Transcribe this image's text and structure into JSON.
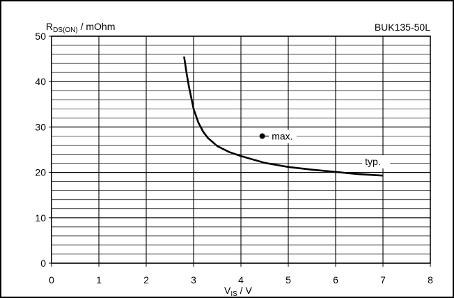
{
  "chart_data": {
    "type": "line",
    "title": "BUK135-50L",
    "ylabel_main": "R",
    "ylabel_sub": "DS(ON)",
    "ylabel_unit": " / mOhm",
    "xlabel_main": "V",
    "xlabel_sub": "IS",
    "xlabel_unit": " / V",
    "xlim": [
      0,
      8
    ],
    "ylim": [
      0,
      50
    ],
    "xticks": [
      "0",
      "1",
      "2",
      "3",
      "4",
      "5",
      "6",
      "7",
      "8"
    ],
    "yticks": [
      "0",
      "10",
      "20",
      "30",
      "40",
      "50"
    ],
    "grid": true,
    "series": [
      {
        "name": "typ.",
        "x": [
          2.8,
          2.85,
          2.9,
          2.95,
          3.0,
          3.1,
          3.2,
          3.3,
          3.5,
          3.75,
          4.0,
          4.5,
          5.0,
          5.5,
          6.0,
          6.5,
          7.0
        ],
        "y": [
          45.5,
          42.0,
          39.0,
          36.5,
          34.0,
          31.0,
          29.0,
          27.6,
          25.8,
          24.5,
          23.6,
          22.1,
          21.2,
          20.6,
          20.1,
          19.6,
          19.3
        ]
      }
    ],
    "annotations": [
      {
        "text": "max.",
        "x": 4.65,
        "y": 28.0,
        "marker": true,
        "marker_x": 4.45,
        "marker_y": 28.0
      },
      {
        "text": "typ.",
        "x": 6.62,
        "y": 22.4,
        "marker": false
      }
    ],
    "line_color": "#000000",
    "grid_color": "#000000"
  }
}
